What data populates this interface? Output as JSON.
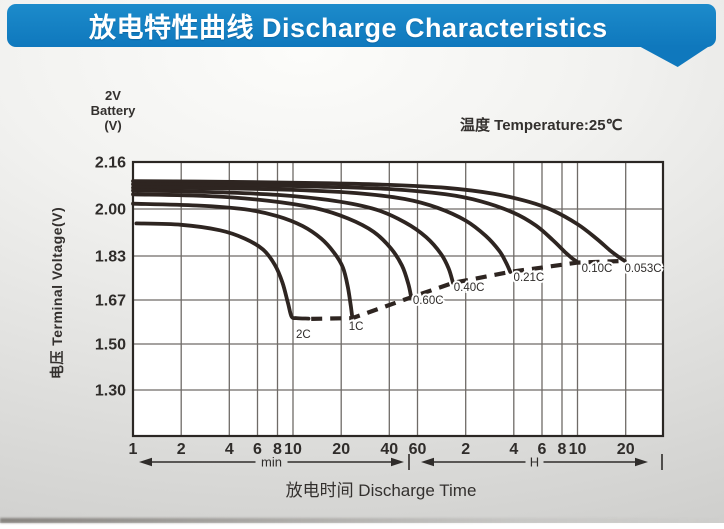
{
  "header": {
    "title": "放电特性曲线 Discharge Characteristics",
    "accent_color": "#1380c4"
  },
  "battery_label": {
    "line1": "2V",
    "line2": "Battery",
    "line3": "(V)"
  },
  "temperature_label": "温度 Temperature:25℃",
  "y_axis_title": "电压 Terminal Voltage(V)",
  "x_axis_title": "放电时间 Discharge Time",
  "chart_data": {
    "type": "line",
    "title": "Discharge Characteristics, 2V battery, 25C",
    "x_scale": "log(time)",
    "x_units": [
      {
        "label": "min",
        "ticks": [
          1,
          2,
          4,
          6,
          8,
          10,
          20,
          40,
          60
        ]
      },
      {
        "label": "H",
        "ticks": [
          2,
          4,
          6,
          8,
          10,
          20
        ]
      }
    ],
    "y_tick_labels": [
      "2.16",
      "2.00",
      "1.83",
      "1.67",
      "1.50",
      "1.30"
    ],
    "y_ticks": [
      2.16,
      2.0,
      1.83,
      1.67,
      1.5,
      1.3
    ],
    "grid": true,
    "colors": {
      "curve": "#2e2521",
      "grid": "#6f6b67",
      "axis": "#2b2724",
      "text": "#2f2c2a"
    },
    "series": [
      {
        "name": "0.053C",
        "label_at": [
          1540,
          1.772
        ],
        "points": [
          [
            1,
            2.095
          ],
          [
            5,
            2.092
          ],
          [
            15,
            2.088
          ],
          [
            40,
            2.082
          ],
          [
            90,
            2.072
          ],
          [
            180,
            2.052
          ],
          [
            300,
            2.024
          ],
          [
            420,
            1.995
          ],
          [
            600,
            1.945
          ],
          [
            780,
            1.895
          ],
          [
            950,
            1.852
          ],
          [
            1100,
            1.824
          ],
          [
            1185,
            1.812
          ]
        ]
      },
      {
        "name": "0.10C",
        "label_at": [
          794,
          1.772
        ],
        "points": [
          [
            1,
            2.084
          ],
          [
            5,
            2.081
          ],
          [
            15,
            2.076
          ],
          [
            40,
            2.068
          ],
          [
            90,
            2.05
          ],
          [
            150,
            2.026
          ],
          [
            240,
            1.986
          ],
          [
            330,
            1.94
          ],
          [
            420,
            1.888
          ],
          [
            500,
            1.845
          ],
          [
            560,
            1.82
          ],
          [
            600,
            1.808
          ]
        ]
      },
      {
        "name": "0.21C",
        "label_at": [
          298,
          1.739
        ],
        "points": [
          [
            1,
            2.073
          ],
          [
            4,
            2.07
          ],
          [
            10,
            2.065
          ],
          [
            25,
            2.054
          ],
          [
            50,
            2.034
          ],
          [
            80,
            2.004
          ],
          [
            120,
            1.958
          ],
          [
            160,
            1.903
          ],
          [
            195,
            1.848
          ],
          [
            215,
            1.805
          ],
          [
            228,
            1.772
          ]
        ]
      },
      {
        "name": "0.40C",
        "label_at": [
          126,
          1.703
        ],
        "points": [
          [
            1,
            2.063
          ],
          [
            3,
            2.058
          ],
          [
            8,
            2.048
          ],
          [
            18,
            2.028
          ],
          [
            33,
            1.998
          ],
          [
            50,
            1.952
          ],
          [
            68,
            1.898
          ],
          [
            84,
            1.838
          ],
          [
            94,
            1.784
          ],
          [
            100,
            1.732
          ]
        ]
      },
      {
        "name": "0.60C",
        "label_at": [
          70,
          1.655
        ],
        "points": [
          [
            1,
            2.05
          ],
          [
            3,
            2.044
          ],
          [
            7,
            2.028
          ],
          [
            14,
            2.002
          ],
          [
            22,
            1.966
          ],
          [
            32,
            1.917
          ],
          [
            41,
            1.857
          ],
          [
            48,
            1.795
          ],
          [
            52.5,
            1.73
          ],
          [
            54.8,
            1.68
          ]
        ]
      },
      {
        "name": "1C",
        "label_at": [
          24.8,
          1.554
        ],
        "points": [
          [
            1,
            2.018
          ],
          [
            2.5,
            2.012
          ],
          [
            5,
            1.999
          ],
          [
            8,
            1.974
          ],
          [
            11.5,
            1.938
          ],
          [
            15,
            1.893
          ],
          [
            18,
            1.843
          ],
          [
            20.5,
            1.788
          ],
          [
            22,
            1.718
          ],
          [
            23,
            1.645
          ],
          [
            23.5,
            1.6
          ]
        ]
      },
      {
        "name": "2C",
        "label_at": [
          11.6,
          1.523
        ],
        "points": [
          [
            1.05,
            1.948
          ],
          [
            2,
            1.943
          ],
          [
            3.5,
            1.923
          ],
          [
            5,
            1.893
          ],
          [
            6.5,
            1.853
          ],
          [
            7.7,
            1.798
          ],
          [
            8.6,
            1.733
          ],
          [
            9.3,
            1.658
          ],
          [
            9.8,
            1.606
          ],
          [
            10.5,
            1.6
          ],
          [
            12.5,
            1.598
          ]
        ]
      }
    ],
    "cutoff_dashed": {
      "name": "final-discharge-voltage-line",
      "points": [
        [
          13,
          1.597
        ],
        [
          23.5,
          1.6
        ],
        [
          54.8,
          1.68
        ],
        [
          100,
          1.732
        ],
        [
          228,
          1.772
        ],
        [
          600,
          1.806
        ],
        [
          1185,
          1.812
        ]
      ]
    }
  }
}
